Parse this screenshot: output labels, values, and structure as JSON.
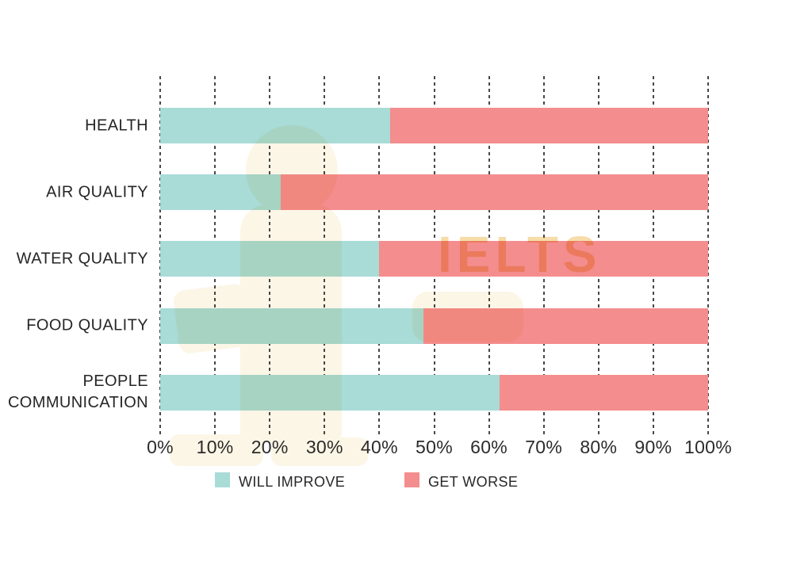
{
  "chart_data": {
    "type": "bar",
    "variant": "horizontal-stacked",
    "categories": [
      "HEALTH",
      "AIR QUALITY",
      "WATER QUALITY",
      "FOOD QUALITY",
      "PEOPLE COMMUNICATION"
    ],
    "series": [
      {
        "name": "WILL IMPROVE",
        "color": "#A9DBD7",
        "values": [
          42,
          22,
          40,
          48,
          62
        ]
      },
      {
        "name": "GET WORSE",
        "color": "#F48D8D",
        "values": [
          58,
          78,
          60,
          52,
          38
        ]
      }
    ],
    "x_ticks": [
      "0%",
      "10%",
      "20%",
      "30%",
      "40%",
      "50%",
      "60%",
      "70%",
      "80%",
      "90%",
      "100%"
    ],
    "xlim": [
      0,
      100
    ],
    "grid": "vertical-dashed",
    "gridline_color": "#474747",
    "legend_position": "bottom"
  },
  "legend": {
    "items": [
      {
        "label": "WILL IMPROVE",
        "color": "#A9DBD7"
      },
      {
        "label": "GET WORSE",
        "color": "#F48D8D"
      }
    ]
  },
  "watermark": {
    "text": "IELTS",
    "text_color": "#F6DCA8",
    "shape_color": "#FCF6E7"
  }
}
